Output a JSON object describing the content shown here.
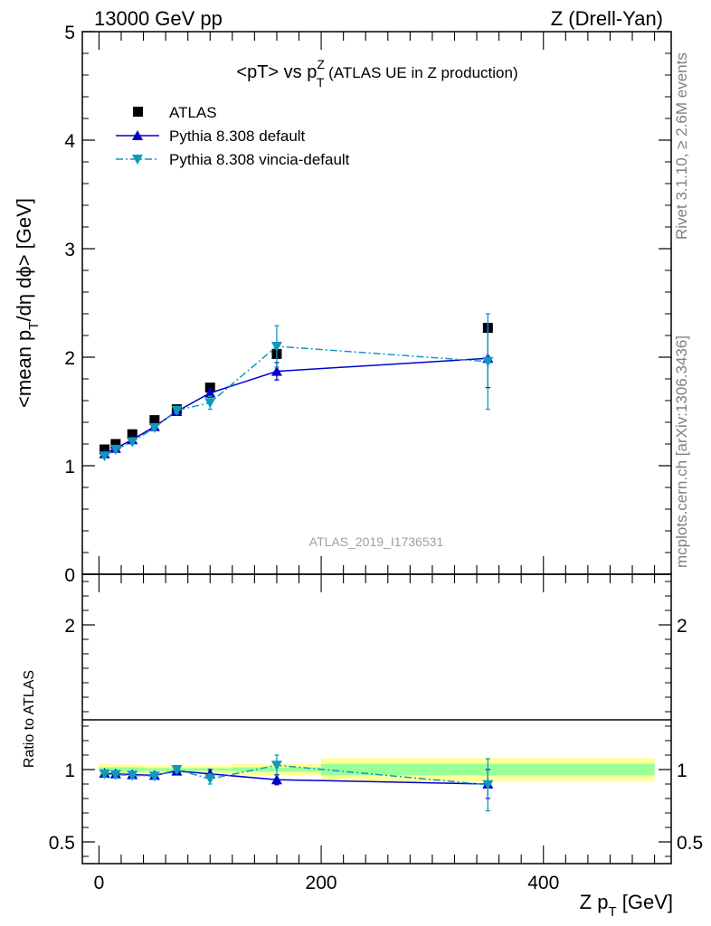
{
  "header": {
    "left": "13000 GeV pp",
    "right": "Z (Drell-Yan)"
  },
  "side_text": {
    "rivet": "Rivet 3.1.10, ≥ 2.6M events",
    "mcplots": "mcplots.cern.ch [arXiv:1306.3436]"
  },
  "watermark": "ATLAS_2019_I1736531",
  "colors": {
    "atlas": "#000000",
    "pythia_default": "#0000cc",
    "pythia_vincia": "#1199bb",
    "band_outer": "#ffff99",
    "band_inner": "#99ff99"
  },
  "chart_data": [
    {
      "type": "scatter",
      "panel": "main",
      "title_parts": {
        "pre": "<pT> vs p",
        "sup": "Z",
        "sub": "T",
        "post": " (ATLAS UE in Z production)"
      },
      "ylabel_parts": {
        "pre": "<mean p",
        "sub": "T",
        "post": "/dη dϕ> [GeV]"
      },
      "xlim": [
        -15,
        515
      ],
      "ylim": [
        0,
        5
      ],
      "yticks": [
        "0",
        "1",
        "2",
        "3",
        "4",
        "5"
      ],
      "ytick_values": [
        0,
        1,
        2,
        3,
        4,
        5
      ],
      "legend_position": "top-left",
      "series": [
        {
          "name": "ATLAS",
          "marker": "square",
          "x": [
            5,
            15,
            30,
            50,
            70,
            100,
            160,
            350
          ],
          "y": [
            1.15,
            1.2,
            1.29,
            1.42,
            1.52,
            1.72,
            2.03,
            2.27
          ]
        },
        {
          "name": "Pythia 8.308 default",
          "marker": "triangle-up",
          "line": "solid",
          "x": [
            5,
            15,
            30,
            50,
            70,
            100,
            160,
            350
          ],
          "y": [
            1.11,
            1.16,
            1.24,
            1.36,
            1.5,
            1.67,
            1.87,
            1.99
          ],
          "yerr": [
            0.02,
            0.02,
            0.02,
            0.02,
            0.03,
            0.04,
            0.08,
            0.27
          ]
        },
        {
          "name": "Pythia 8.308 vincia-default",
          "marker": "triangle-down",
          "line": "dashdot",
          "x": [
            5,
            15,
            30,
            50,
            70,
            100,
            160,
            350
          ],
          "y": [
            1.09,
            1.15,
            1.22,
            1.35,
            1.51,
            1.58,
            2.1,
            1.96
          ],
          "yerr": [
            0.02,
            0.02,
            0.02,
            0.02,
            0.03,
            0.06,
            0.19,
            0.44
          ]
        }
      ]
    },
    {
      "type": "scatter",
      "panel": "ratio",
      "ylabel": "Ratio to ATLAS",
      "xlabel_parts": {
        "pre": "Z p",
        "sub": "T",
        "post": " [GeV]"
      },
      "xlim": [
        -15,
        515
      ],
      "ylim": [
        0.35,
        2.35
      ],
      "xticks": [
        "0",
        "200",
        "400"
      ],
      "xtick_values": [
        0,
        200,
        400
      ],
      "yticks": [
        "0.5",
        "1",
        "2"
      ],
      "ytick_values": [
        0.5,
        1,
        2
      ],
      "bands": {
        "x_edges": [
          0,
          10,
          20,
          40,
          60,
          80,
          120,
          200,
          500
        ],
        "outer": [
          [
            0.96,
            1.04
          ],
          [
            0.965,
            1.035
          ],
          [
            0.965,
            1.035
          ],
          [
            0.975,
            1.025
          ],
          [
            0.975,
            1.025
          ],
          [
            0.975,
            1.025
          ],
          [
            0.96,
            1.04
          ],
          [
            0.92,
            1.08
          ]
        ],
        "inner": [
          [
            0.985,
            1.015
          ],
          [
            0.985,
            1.015
          ],
          [
            0.985,
            1.015
          ],
          [
            0.99,
            1.01
          ],
          [
            0.99,
            1.01
          ],
          [
            0.99,
            1.01
          ],
          [
            0.985,
            1.015
          ],
          [
            0.96,
            1.04
          ]
        ]
      },
      "series": [
        {
          "name": "Pythia 8.308 default",
          "marker": "triangle-up",
          "line": "solid",
          "x": [
            5,
            15,
            30,
            50,
            70,
            100,
            160,
            350
          ],
          "y": [
            0.975,
            0.97,
            0.965,
            0.96,
            0.99,
            0.97,
            0.93,
            0.9
          ],
          "yerr": [
            0.02,
            0.02,
            0.02,
            0.02,
            0.02,
            0.03,
            0.035,
            0.1
          ]
        },
        {
          "name": "Pythia 8.308 vincia-default",
          "marker": "triangle-down",
          "line": "dashdot",
          "x": [
            5,
            15,
            30,
            50,
            70,
            100,
            160,
            350
          ],
          "y": [
            0.97,
            0.965,
            0.96,
            0.955,
            1.0,
            0.935,
            1.03,
            0.895
          ],
          "yerr": [
            0.02,
            0.02,
            0.02,
            0.02,
            0.02,
            0.035,
            0.07,
            0.18
          ]
        }
      ]
    }
  ]
}
